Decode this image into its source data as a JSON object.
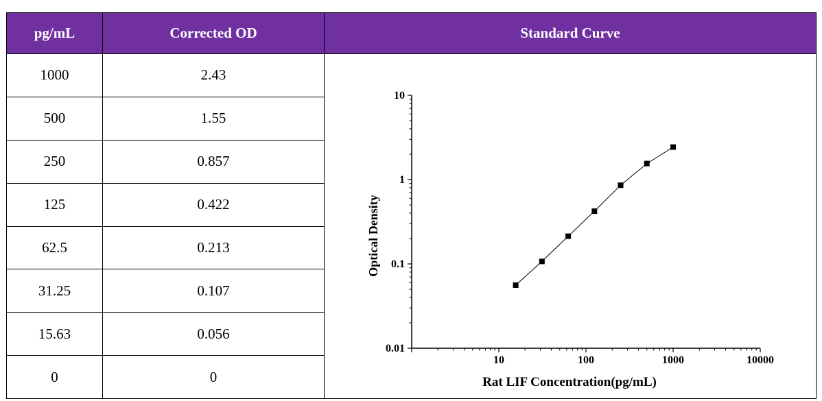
{
  "table": {
    "headers": [
      "pg/mL",
      "Corrected OD",
      "Standard Curve"
    ],
    "rows": [
      {
        "conc": "1000",
        "od": "2.43"
      },
      {
        "conc": "500",
        "od": "1.55"
      },
      {
        "conc": "250",
        "od": "0.857"
      },
      {
        "conc": "125",
        "od": "0.422"
      },
      {
        "conc": "62.5",
        "od": "0.213"
      },
      {
        "conc": "31.25",
        "od": "0.107"
      },
      {
        "conc": "15.63",
        "od": "0.056"
      },
      {
        "conc": "0",
        "od": "0"
      }
    ]
  },
  "chart_data": {
    "type": "line",
    "title": "",
    "xlabel": "Rat LIF Concentration(pg/mL)",
    "ylabel": "Optical Density",
    "x_scale": "log",
    "y_scale": "log",
    "xlim": [
      1,
      10000
    ],
    "ylim": [
      0.01,
      10
    ],
    "x_tick_labels": [
      "10",
      "100",
      "1000",
      "10000"
    ],
    "y_tick_labels": [
      "0.01",
      "0.1",
      "1",
      "10"
    ],
    "grid": false,
    "series": [
      {
        "x": [
          15.63,
          31.25,
          62.5,
          125,
          250,
          500,
          1000
        ],
        "y": [
          0.056,
          0.107,
          0.213,
          0.422,
          0.857,
          1.55,
          2.43
        ]
      }
    ]
  }
}
